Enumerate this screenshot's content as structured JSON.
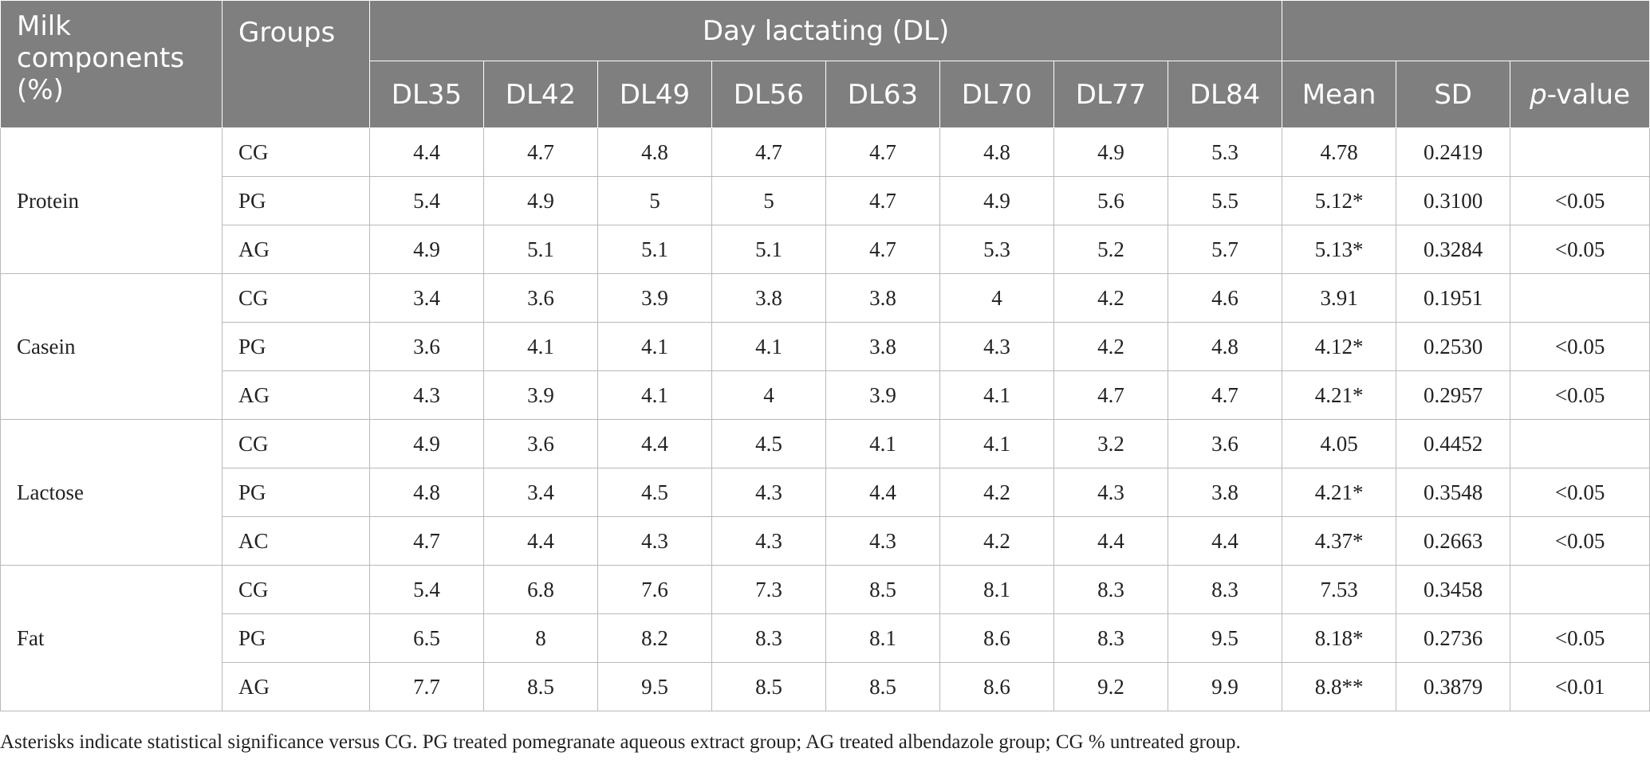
{
  "header": {
    "milk_components": "Milk components (%)",
    "groups": "Groups",
    "day_lactating": "Day lactating (DL)",
    "columns": [
      "DL35",
      "DL42",
      "DL49",
      "DL56",
      "DL63",
      "DL70",
      "DL77",
      "DL84",
      "Mean",
      "SD"
    ],
    "pvalue_p": "p",
    "pvalue_rest": "-value"
  },
  "sections": [
    {
      "component": "Protein",
      "rows": [
        {
          "group": "CG",
          "values": [
            "4.4",
            "4.7",
            "4.8",
            "4.7",
            "4.7",
            "4.8",
            "4.9",
            "5.3"
          ],
          "mean": "4.78",
          "sd": "0.2419",
          "p": ""
        },
        {
          "group": "PG",
          "values": [
            "5.4",
            "4.9",
            "5",
            "5",
            "4.7",
            "4.9",
            "5.6",
            "5.5"
          ],
          "mean": "5.12*",
          "sd": "0.3100",
          "p": "<0.05"
        },
        {
          "group": "AG",
          "values": [
            "4.9",
            "5.1",
            "5.1",
            "5.1",
            "4.7",
            "5.3",
            "5.2",
            "5.7"
          ],
          "mean": "5.13*",
          "sd": "0.3284",
          "p": "<0.05"
        }
      ]
    },
    {
      "component": "Casein",
      "rows": [
        {
          "group": "CG",
          "values": [
            "3.4",
            "3.6",
            "3.9",
            "3.8",
            "3.8",
            "4",
            "4.2",
            "4.6"
          ],
          "mean": "3.91",
          "sd": "0.1951",
          "p": ""
        },
        {
          "group": "PG",
          "values": [
            "3.6",
            "4.1",
            "4.1",
            "4.1",
            "3.8",
            "4.3",
            "4.2",
            "4.8"
          ],
          "mean": "4.12*",
          "sd": "0.2530",
          "p": "<0.05"
        },
        {
          "group": "AG",
          "values": [
            "4.3",
            "3.9",
            "4.1",
            "4",
            "3.9",
            "4.1",
            "4.7",
            "4.7"
          ],
          "mean": "4.21*",
          "sd": "0.2957",
          "p": "<0.05"
        }
      ]
    },
    {
      "component": "Lactose",
      "rows": [
        {
          "group": "CG",
          "values": [
            "4.9",
            "3.6",
            "4.4",
            "4.5",
            "4.1",
            "4.1",
            "3.2",
            "3.6"
          ],
          "mean": "4.05",
          "sd": "0.4452",
          "p": ""
        },
        {
          "group": "PG",
          "values": [
            "4.8",
            "3.4",
            "4.5",
            "4.3",
            "4.4",
            "4.2",
            "4.3",
            "3.8"
          ],
          "mean": "4.21*",
          "sd": "0.3548",
          "p": "<0.05"
        },
        {
          "group": "AC",
          "values": [
            "4.7",
            "4.4",
            "4.3",
            "4.3",
            "4.3",
            "4.2",
            "4.4",
            "4.4"
          ],
          "mean": "4.37*",
          "sd": "0.2663",
          "p": "<0.05"
        }
      ]
    },
    {
      "component": "Fat",
      "rows": [
        {
          "group": "CG",
          "values": [
            "5.4",
            "6.8",
            "7.6",
            "7.3",
            "8.5",
            "8.1",
            "8.3",
            "8.3"
          ],
          "mean": "7.53",
          "sd": "0.3458",
          "p": ""
        },
        {
          "group": "PG",
          "values": [
            "6.5",
            "8",
            "8.2",
            "8.3",
            "8.1",
            "8.6",
            "8.3",
            "9.5"
          ],
          "mean": "8.18*",
          "sd": "0.2736",
          "p": "<0.05"
        },
        {
          "group": "AG",
          "values": [
            "7.7",
            "8.5",
            "9.5",
            "8.5",
            "8.5",
            "8.6",
            "9.2",
            "9.9"
          ],
          "mean": "8.8**",
          "sd": "0.3879",
          "p": "<0.01"
        }
      ]
    }
  ],
  "footnote": "Asterisks indicate statistical significance versus CG. PG treated pomegranate aqueous extract group; AG treated albendazole group; CG % untreated group."
}
